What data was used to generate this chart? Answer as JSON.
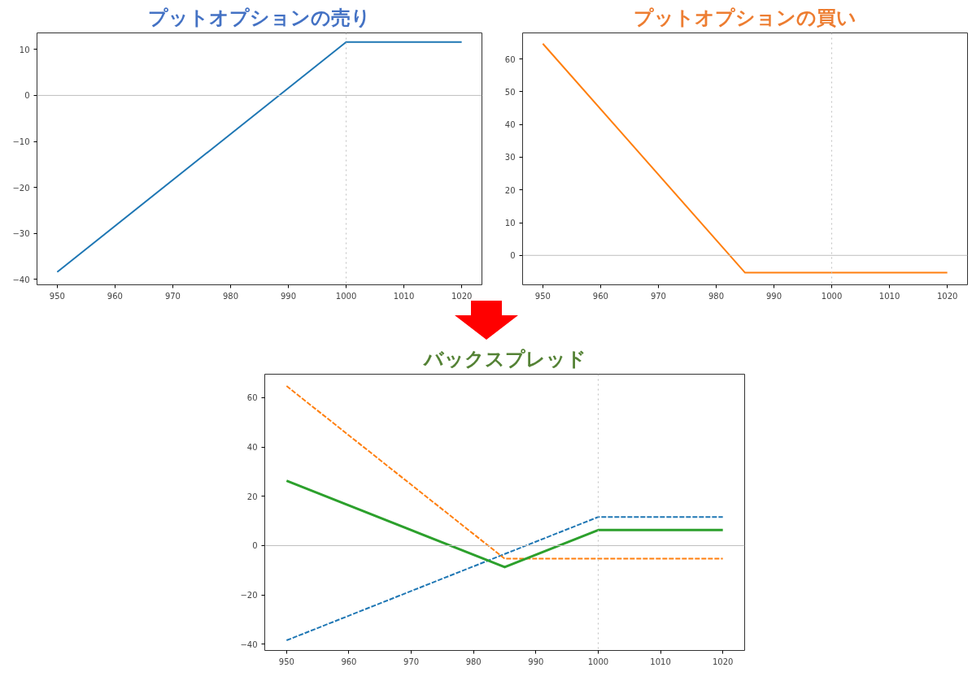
{
  "chart_data": [
    {
      "type": "line",
      "title": "プットオプションの売り",
      "x": [
        950,
        1000,
        1020
      ],
      "xlim": [
        946.5,
        1023.5
      ],
      "xticks": [
        950,
        960,
        970,
        980,
        990,
        1000,
        1010,
        1020
      ],
      "ylim": [
        -41.2,
        13.6
      ],
      "yticks": [
        -40,
        -30,
        -20,
        -10,
        0,
        10
      ],
      "grid": false,
      "series": [
        {
          "color": "#1f77b4",
          "values": [
            -38.4,
            11.6,
            11.6
          ]
        }
      ],
      "ref_lines": [
        {
          "axis": "y",
          "value": 0,
          "color": "#bfbfbf",
          "line_style": "solid"
        },
        {
          "axis": "x",
          "value": 1000,
          "color": "#bfbfbf",
          "line_style": "dotted"
        }
      ]
    },
    {
      "type": "line",
      "title": "プットオプションの買い",
      "x": [
        950,
        985,
        1020
      ],
      "xlim": [
        946.5,
        1023.5
      ],
      "xticks": [
        950,
        960,
        970,
        980,
        990,
        1000,
        1010,
        1020
      ],
      "ylim": [
        -9,
        68
      ],
      "yticks": [
        0,
        10,
        20,
        30,
        40,
        50,
        60
      ],
      "grid": false,
      "series": [
        {
          "color": "#ff7f0e",
          "values": [
            64.7,
            -5.3,
            -5.3
          ]
        }
      ],
      "ref_lines": [
        {
          "axis": "y",
          "value": 0,
          "color": "#bfbfbf",
          "line_style": "solid"
        },
        {
          "axis": "x",
          "value": 1000,
          "color": "#bfbfbf",
          "line_style": "dotted"
        }
      ]
    },
    {
      "type": "line",
      "title": "バックスプレッド",
      "x": [
        950,
        985,
        1000,
        1020
      ],
      "xlim": [
        946.5,
        1023.5
      ],
      "xticks": [
        950,
        960,
        970,
        980,
        990,
        1000,
        1010,
        1020
      ],
      "ylim": [
        -42.5,
        69.5
      ],
      "yticks": [
        -40,
        -20,
        0,
        20,
        40,
        60
      ],
      "grid": false,
      "series": [
        {
          "color": "#1f77b4",
          "line_style": "dashed",
          "values": [
            -38.4,
            -3.4,
            11.6,
            11.6
          ]
        },
        {
          "color": "#ff7f0e",
          "line_style": "dashed",
          "values": [
            64.7,
            -5.3,
            -5.3,
            -5.3
          ]
        },
        {
          "color": "#2ca02c",
          "line_style": "solid",
          "values": [
            26.3,
            -8.7,
            6.3,
            6.3
          ]
        }
      ],
      "ref_lines": [
        {
          "axis": "y",
          "value": 0,
          "color": "#bfbfbf",
          "line_style": "solid"
        },
        {
          "axis": "x",
          "value": 1000,
          "color": "#bfbfbf",
          "line_style": "dotted"
        }
      ]
    }
  ]
}
